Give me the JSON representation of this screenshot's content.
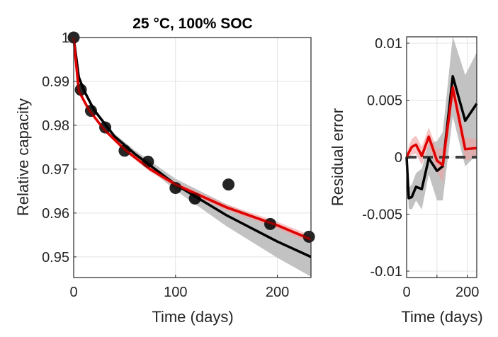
{
  "chart_data": [
    {
      "type": "line",
      "title": "25 °C, 100% SOC",
      "xlabel": "Time (days)",
      "ylabel": "Relative capacity",
      "xlim": [
        0,
        233
      ],
      "ylim": [
        0.9453,
        1.0
      ],
      "grid": true,
      "xticks": [
        0,
        100,
        200
      ],
      "xtick_labels": [
        "0",
        "100",
        "200"
      ],
      "yticks": [
        0.95,
        0.96,
        0.97,
        0.98,
        0.99,
        1.0
      ],
      "ytick_labels": [
        "0.95",
        "0.96",
        "0.97",
        "0.98",
        "0.99",
        "1"
      ],
      "scatter": {
        "x": [
          0,
          7,
          17,
          31,
          50,
          73,
          100,
          119,
          152,
          193,
          231
        ],
        "y": [
          1.0,
          0.9881,
          0.9833,
          0.9795,
          0.9742,
          0.9717,
          0.9657,
          0.9633,
          0.9665,
          0.9575,
          0.9546
        ],
        "color": "#000000"
      },
      "series": [
        {
          "color": "#000000",
          "band_color": "#bfbfbf",
          "x": [
            0,
            5,
            10,
            20,
            40,
            60,
            100,
            150,
            200,
            233
          ],
          "y": [
            1.0,
            0.991,
            0.988,
            0.9835,
            0.9775,
            0.9735,
            0.9665,
            0.9595,
            0.9535,
            0.95
          ],
          "band_halfwidth": [
            0,
            0.0002,
            0.0003,
            0.0004,
            0.0006,
            0.0008,
            0.0013,
            0.0025,
            0.0037,
            0.0045
          ]
        },
        {
          "color": "#e00000",
          "band_color": "#f0a0a0",
          "x": [
            0,
            5,
            15,
            30,
            50,
            75,
            100,
            150,
            200,
            233
          ],
          "y": [
            1.0,
            0.9878,
            0.9835,
            0.979,
            0.9745,
            0.97,
            0.9665,
            0.9613,
            0.9572,
            0.954
          ],
          "band_halfwidth": [
            0,
            0.0002,
            0.0003,
            0.0004,
            0.0005,
            0.0006,
            0.0006,
            0.0007,
            0.0008,
            0.0009
          ]
        }
      ]
    },
    {
      "type": "line",
      "xlabel": "Time (days)",
      "ylabel": "Residual error",
      "xlim": [
        0,
        231
      ],
      "ylim": [
        -0.01056,
        0.01056
      ],
      "grid": true,
      "xticks": [
        0,
        100,
        200
      ],
      "xtick_labels": [
        "0",
        "",
        "200"
      ],
      "yticks": [
        -0.01,
        -0.005,
        0,
        0.005,
        0.01
      ],
      "ytick_labels": [
        "-0.01",
        "-0.005",
        "0",
        "0.005",
        "0.01"
      ],
      "zero_line": {
        "style": "dashed",
        "color": "#404040"
      },
      "series": [
        {
          "color": "#000000",
          "band_color": "#bfbfbf",
          "x": [
            0,
            7,
            17,
            31,
            50,
            73,
            100,
            119,
            152,
            193,
            231
          ],
          "y": [
            0,
            -0.0036,
            -0.0035,
            -0.0026,
            -0.0028,
            -0.0001,
            -0.0012,
            -0.0008,
            0.0071,
            0.0032,
            0.0047
          ],
          "band_halfwidth": [
            0,
            0.0009,
            0.0011,
            0.0012,
            0.0018,
            0.0014,
            0.0026,
            0.003,
            0.0035,
            0.004,
            0.0045
          ]
        },
        {
          "color": "#e00000",
          "band_color": "#f0a0a0",
          "x": [
            0,
            7,
            17,
            31,
            50,
            73,
            100,
            119,
            152,
            193,
            231
          ],
          "y": [
            0,
            0.0004,
            0.0009,
            0.0011,
            0.0001,
            0.0018,
            -0.0003,
            -0.0007,
            0.0061,
            0.0007,
            0.0008
          ],
          "band_halfwidth": [
            0,
            0.0006,
            0.0007,
            0.0008,
            0.0008,
            0.0008,
            0.001,
            0.0015,
            0.001,
            0.001,
            0.0008
          ]
        }
      ]
    }
  ]
}
